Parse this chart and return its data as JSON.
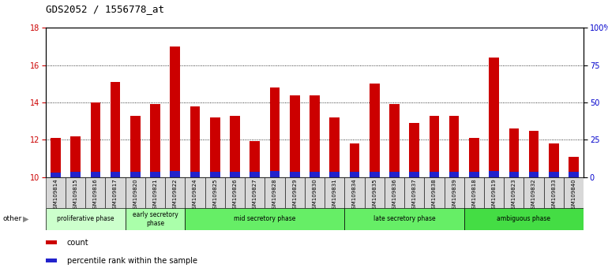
{
  "title": "GDS2052 / 1556778_at",
  "samples": [
    "GSM109814",
    "GSM109815",
    "GSM109816",
    "GSM109817",
    "GSM109820",
    "GSM109821",
    "GSM109822",
    "GSM109824",
    "GSM109825",
    "GSM109826",
    "GSM109827",
    "GSM109828",
    "GSM109829",
    "GSM109830",
    "GSM109831",
    "GSM109834",
    "GSM109835",
    "GSM109836",
    "GSM109837",
    "GSM109838",
    "GSM109839",
    "GSM109818",
    "GSM109819",
    "GSM109823",
    "GSM109832",
    "GSM109833",
    "GSM109840"
  ],
  "count_values": [
    12.1,
    12.2,
    14.0,
    15.1,
    13.3,
    13.9,
    17.0,
    13.8,
    13.2,
    13.3,
    11.95,
    14.8,
    14.4,
    14.4,
    13.2,
    11.8,
    15.0,
    13.9,
    12.9,
    13.3,
    13.3,
    12.1,
    16.4,
    12.6,
    12.5,
    11.8,
    11.1
  ],
  "percentile_values": [
    0.25,
    0.3,
    0.3,
    0.3,
    0.3,
    0.28,
    0.32,
    0.3,
    0.3,
    0.3,
    0.3,
    0.32,
    0.3,
    0.3,
    0.28,
    0.28,
    0.3,
    0.3,
    0.3,
    0.3,
    0.3,
    0.28,
    0.32,
    0.3,
    0.3,
    0.3,
    0.28
  ],
  "bar_base": 10.0,
  "ylim_left": [
    10,
    18
  ],
  "ylim_right": [
    0,
    100
  ],
  "yticks_left": [
    10,
    12,
    14,
    16,
    18
  ],
  "yticks_right": [
    0,
    25,
    50,
    75,
    100
  ],
  "ytick_labels_right": [
    "0",
    "25",
    "50",
    "75",
    "100%"
  ],
  "count_color": "#cc0000",
  "percentile_color": "#2222cc",
  "bar_width": 0.5,
  "bg_color": "#ffffff",
  "tick_bg_color": "#d8d8d8",
  "left_axis_color": "#cc0000",
  "right_axis_color": "#0000cc",
  "phase_data": [
    {
      "label": "proliferative phase",
      "start": 0,
      "end": 4,
      "color": "#ccffcc"
    },
    {
      "label": "early secretory\nphase",
      "start": 4,
      "end": 7,
      "color": "#aaffaa"
    },
    {
      "label": "mid secretory phase",
      "start": 7,
      "end": 15,
      "color": "#66ee66"
    },
    {
      "label": "late secretory phase",
      "start": 15,
      "end": 21,
      "color": "#66ee66"
    },
    {
      "label": "ambiguous phase",
      "start": 21,
      "end": 27,
      "color": "#44dd44"
    }
  ]
}
